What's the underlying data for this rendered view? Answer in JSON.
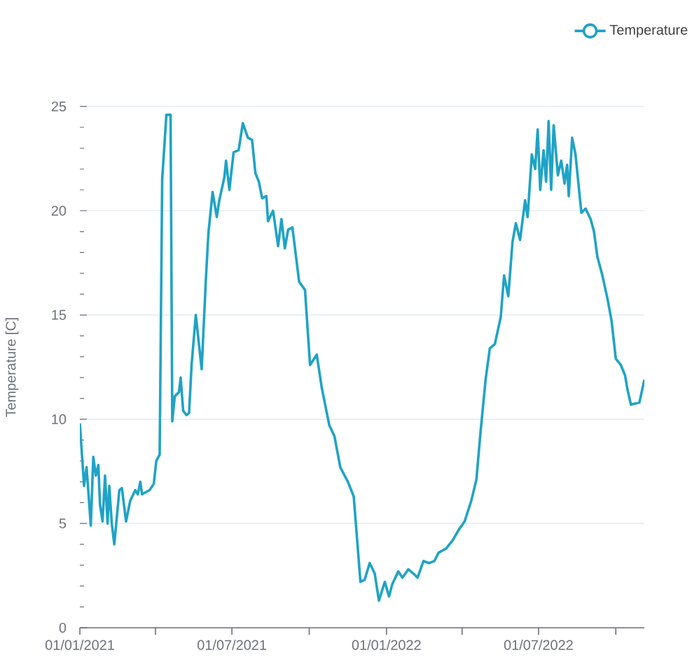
{
  "chart_data": {
    "type": "line",
    "ylabel": "Temperature [C]",
    "legend": "top right",
    "grid": "y",
    "marker": "none",
    "line_style": "solid",
    "xlim": [
      "2021-01-01",
      "2022-11-04"
    ],
    "ylim": [
      0,
      25
    ],
    "yticks": [
      0,
      5,
      10,
      15,
      20,
      25
    ],
    "xticks": [
      {
        "value": "2021-01-01",
        "label": "01/01/2021"
      },
      {
        "value": "2021-04-01",
        "label": null
      },
      {
        "value": "2021-07-01",
        "label": "01/07/2021"
      },
      {
        "value": "2021-10-01",
        "label": null
      },
      {
        "value": "2022-01-01",
        "label": "01/01/2022"
      },
      {
        "value": "2022-04-01",
        "label": null
      },
      {
        "value": "2022-07-01",
        "label": "01/07/2022"
      },
      {
        "value": "2022-10-01",
        "label": null
      }
    ],
    "x": [
      "2021-01-01",
      "2021-01-06",
      "2021-01-09",
      "2021-01-11",
      "2021-01-14",
      "2021-01-17",
      "2021-01-20",
      "2021-01-23",
      "2021-01-25",
      "2021-01-28",
      "2021-01-31",
      "2021-02-03",
      "2021-02-05",
      "2021-02-08",
      "2021-02-11",
      "2021-02-17",
      "2021-02-20",
      "2021-02-25",
      "2021-03-02",
      "2021-03-08",
      "2021-03-11",
      "2021-03-14",
      "2021-03-16",
      "2021-03-25",
      "2021-03-30",
      "2021-04-02",
      "2021-04-06",
      "2021-04-09",
      "2021-04-14",
      "2021-04-19",
      "2021-04-21",
      "2021-04-24",
      "2021-04-29",
      "2021-05-01",
      "2021-05-04",
      "2021-05-08",
      "2021-05-11",
      "2021-05-14",
      "2021-05-19",
      "2021-05-26",
      "2021-05-31",
      "2021-06-03",
      "2021-06-08",
      "2021-06-13",
      "2021-06-16",
      "2021-06-22",
      "2021-06-24",
      "2021-06-28",
      "2021-07-03",
      "2021-07-09",
      "2021-07-14",
      "2021-07-20",
      "2021-07-25",
      "2021-07-29",
      "2021-08-02",
      "2021-08-06",
      "2021-08-11",
      "2021-08-13",
      "2021-08-19",
      "2021-08-25",
      "2021-08-29",
      "2021-09-02",
      "2021-09-06",
      "2021-09-11",
      "2021-09-19",
      "2021-09-26",
      "2021-10-02",
      "2021-10-10",
      "2021-10-16",
      "2021-10-25",
      "2021-10-31",
      "2021-11-07",
      "2021-11-16",
      "2021-11-23",
      "2021-12-01",
      "2021-12-06",
      "2021-12-12",
      "2021-12-18",
      "2021-12-23",
      "2021-12-30",
      "2022-01-04",
      "2022-01-08",
      "2022-01-15",
      "2022-01-20",
      "2022-01-27",
      "2022-02-02",
      "2022-02-07",
      "2022-02-14",
      "2022-02-21",
      "2022-02-27",
      "2022-03-04",
      "2022-03-13",
      "2022-03-21",
      "2022-03-28",
      "2022-04-04",
      "2022-04-12",
      "2022-04-18",
      "2022-04-23",
      "2022-04-29",
      "2022-05-04",
      "2022-05-10",
      "2022-05-17",
      "2022-05-21",
      "2022-05-26",
      "2022-05-31",
      "2022-06-04",
      "2022-06-09",
      "2022-06-15",
      "2022-06-18",
      "2022-06-23",
      "2022-06-27",
      "2022-06-30",
      "2022-07-03",
      "2022-07-07",
      "2022-07-10",
      "2022-07-13",
      "2022-07-16",
      "2022-07-19",
      "2022-07-24",
      "2022-07-28",
      "2022-08-01",
      "2022-08-04",
      "2022-08-06",
      "2022-08-10",
      "2022-08-14",
      "2022-08-21",
      "2022-08-26",
      "2022-09-01",
      "2022-09-05",
      "2022-09-09",
      "2022-09-15",
      "2022-09-21",
      "2022-09-26",
      "2022-10-01",
      "2022-10-07",
      "2022-10-12",
      "2022-10-15",
      "2022-10-19",
      "2022-10-29",
      "2022-11-04"
    ],
    "series": [
      {
        "name": "Temperature",
        "color": "#1fa3c6",
        "values": [
          9.8,
          6.8,
          7.7,
          6.6,
          4.9,
          8.2,
          7.3,
          7.8,
          5.9,
          5.1,
          7.3,
          5.0,
          6.8,
          5.0,
          4.0,
          6.6,
          6.7,
          5.1,
          6.1,
          6.6,
          6.4,
          7.0,
          6.4,
          6.6,
          6.9,
          8.0,
          8.3,
          21.5,
          24.6,
          24.6,
          9.9,
          11.1,
          11.3,
          12.0,
          10.4,
          10.2,
          10.3,
          12.6,
          15.0,
          12.4,
          16.7,
          18.9,
          20.9,
          19.7,
          20.5,
          21.6,
          22.4,
          21.0,
          22.8,
          22.9,
          24.2,
          23.5,
          23.4,
          21.8,
          21.4,
          20.6,
          20.7,
          19.5,
          20.0,
          18.3,
          19.6,
          18.2,
          19.1,
          19.2,
          16.6,
          16.2,
          12.6,
          13.1,
          11.5,
          9.7,
          9.2,
          7.7,
          7.0,
          6.3,
          2.2,
          2.3,
          3.1,
          2.6,
          1.3,
          2.2,
          1.5,
          2.1,
          2.7,
          2.4,
          2.8,
          2.6,
          2.4,
          3.2,
          3.1,
          3.2,
          3.6,
          3.8,
          4.2,
          4.7,
          5.1,
          6.1,
          7.1,
          9.4,
          11.9,
          13.4,
          13.6,
          14.9,
          16.9,
          15.9,
          18.5,
          19.4,
          18.6,
          20.5,
          19.7,
          22.7,
          22.0,
          23.9,
          21.0,
          22.9,
          21.4,
          24.3,
          21.0,
          24.1,
          21.7,
          22.4,
          21.3,
          22.2,
          20.7,
          23.5,
          22.7,
          19.9,
          20.1,
          19.6,
          19.0,
          17.8,
          16.9,
          15.8,
          14.7,
          12.9,
          12.6,
          12.1,
          11.4,
          10.7,
          10.8,
          11.9
        ]
      }
    ]
  }
}
